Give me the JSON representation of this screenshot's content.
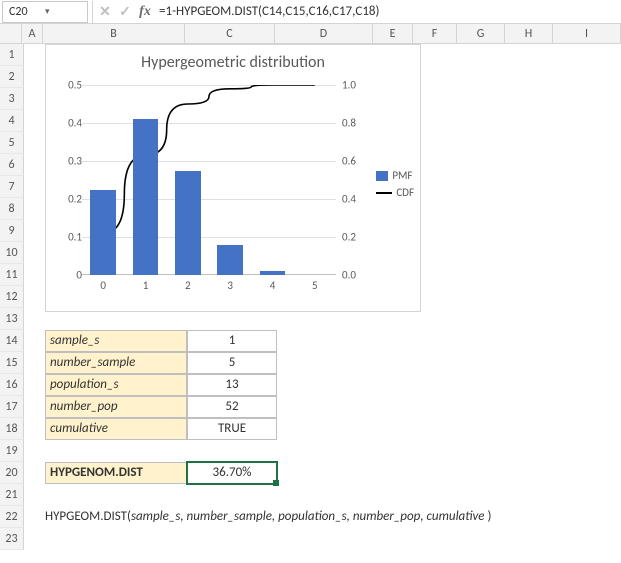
{
  "formula_bar": {
    "cell_ref": "C20",
    "formula": "=1-HYPGEOM.DIST(C14,C15,C16,C17,C18)"
  },
  "columns": {
    "labels": [
      "A",
      "B",
      "C",
      "D",
      "E",
      "F",
      "G",
      "H",
      "I"
    ],
    "widths": [
      21,
      142,
      90,
      98,
      40,
      44,
      48,
      48,
      68
    ]
  },
  "rows": {
    "count": 23,
    "height": 22
  },
  "chart": {
    "type": "bar+line",
    "title": "Hypergeometric distribution",
    "title_fontsize": 16,
    "title_color": "#595959",
    "background_color": "#ffffff",
    "border_color": "#d4d4d4",
    "grid_color": "#e0e0e0",
    "x_categories": [
      0,
      1,
      2,
      3,
      4,
      5
    ],
    "bars": {
      "series_name": "PMF",
      "color": "#4472c4",
      "values": [
        0.225,
        0.41,
        0.275,
        0.08,
        0.01,
        0.0
      ],
      "bar_width": 0.6,
      "y_axis": "left"
    },
    "line": {
      "series_name": "CDF",
      "color": "#000000",
      "values": [
        0.22,
        0.63,
        0.9,
        0.98,
        1.0,
        1.0
      ],
      "line_width": 1.6,
      "y_axis": "right"
    },
    "y_left": {
      "min": 0,
      "max": 0.5,
      "tick_step": 0.1,
      "labels": [
        "0",
        "0.1",
        "0.2",
        "0.3",
        "0.4",
        "0.5"
      ]
    },
    "y_right": {
      "min": 0.0,
      "max": 1.0,
      "tick_step": 0.2,
      "labels": [
        "0.0",
        "0.2",
        "0.4",
        "0.6",
        "0.8",
        "1.0"
      ]
    },
    "tick_fontsize": 11,
    "legend": {
      "items": [
        "PMF",
        "CDF"
      ]
    }
  },
  "params": [
    {
      "name": "sample_s",
      "value": "1"
    },
    {
      "name": "number_sample",
      "value": "5"
    },
    {
      "name": "population_s",
      "value": "13"
    },
    {
      "name": "number_pop",
      "value": "52"
    },
    {
      "name": "cumulative",
      "value": "TRUE"
    }
  ],
  "result": {
    "label": "HYPGENOM.DIST",
    "value": "36.70%"
  },
  "syntax_line": {
    "func": "HYPGEOM.DIST(",
    "args": "sample_s, number_sample, population_s, number_pop, cumulative",
    "close": " )"
  },
  "colors": {
    "beige": "#fff2cc",
    "cell_border": "#bfbfbf",
    "selection": "#1f7246"
  }
}
